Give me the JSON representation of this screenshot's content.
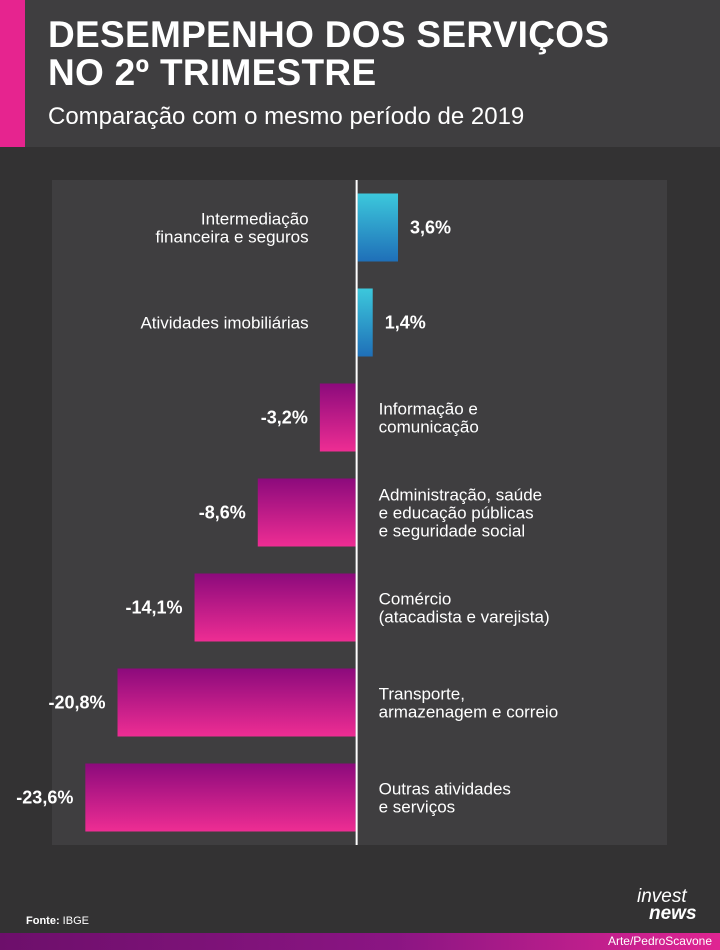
{
  "header": {
    "title_line1": "DESEMPENHO DOS SERVIÇOS",
    "title_line2": "NO 2º TRIMESTRE",
    "subtitle": "Comparação com o mesmo período de 2019"
  },
  "chart_data": {
    "type": "bar",
    "orientation": "horizontal",
    "title": "DESEMPENHO DOS SERVIÇOS NO 2º TRIMESTRE",
    "subtitle": "Comparação com o mesmo período de 2019",
    "unit": "%",
    "categories": [
      [
        "Intermediação",
        "financeira e seguros"
      ],
      [
        "Atividades imobiliárias"
      ],
      [
        "Informação e",
        "comunicação"
      ],
      [
        "Administração, saúde",
        "e educação públicas",
        "e seguridade social"
      ],
      [
        "Comércio",
        "(atacadista e varejista)"
      ],
      [
        "Transporte,",
        "armazenagem e correio"
      ],
      [
        "Outras atividades",
        "e serviços"
      ]
    ],
    "values": [
      3.6,
      1.4,
      -3.2,
      -8.6,
      -14.1,
      -20.8,
      -23.6
    ],
    "value_labels": [
      "3,6%",
      "1,4%",
      "-3,2%",
      "-8,6%",
      "-14,1%",
      "-20,8%",
      "-23,6%"
    ],
    "xlim": [
      -26.5,
      27
    ],
    "colors": {
      "positive_top": "#3cc8dc",
      "positive_bottom": "#1f6fb8",
      "negative_top": "#8c0a7c",
      "negative_bottom": "#ee2d93"
    }
  },
  "footer": {
    "source_label": "Fonte:",
    "source_value": "IBGE",
    "logo_line1": "invest",
    "logo_line2": "news",
    "credit": "Arte/PedroScavone"
  }
}
